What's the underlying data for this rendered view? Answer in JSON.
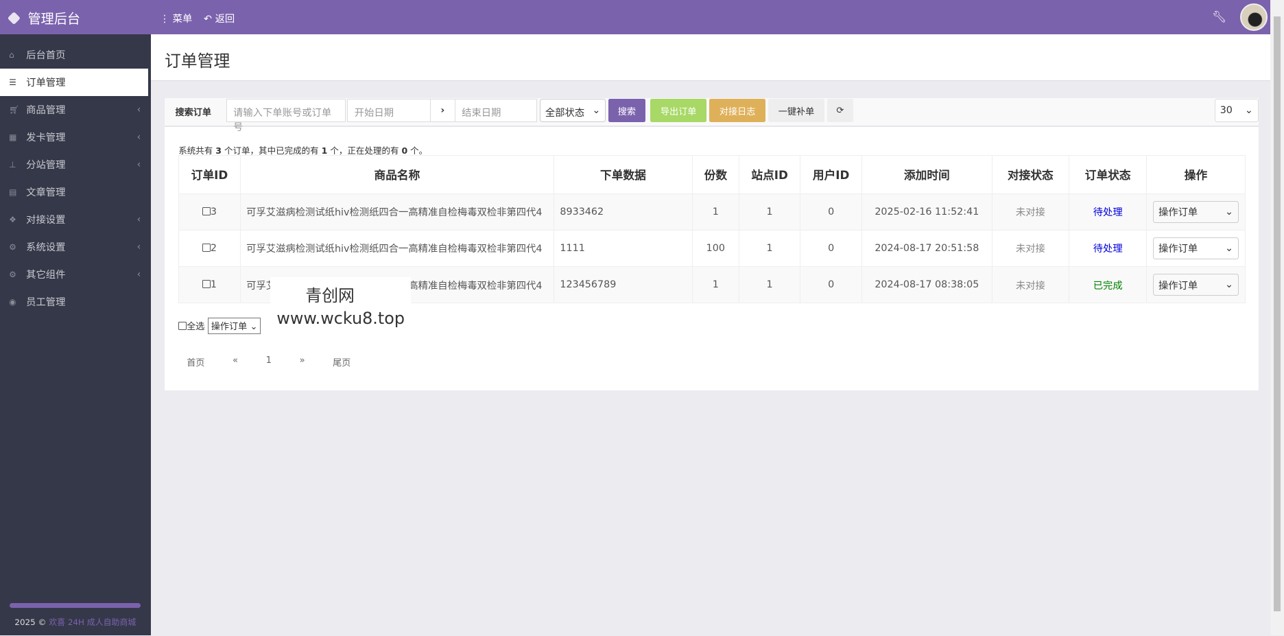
{
  "app": {
    "title": "管理后台",
    "menu_label": "菜单",
    "back_label": "返回"
  },
  "sidebar": {
    "items": [
      {
        "label": "后台首页",
        "icon": "home-icon",
        "active": false,
        "expandable": false
      },
      {
        "label": "订单管理",
        "icon": "list-icon",
        "active": true,
        "expandable": false
      },
      {
        "label": "商品管理",
        "icon": "cart-icon",
        "active": false,
        "expandable": true
      },
      {
        "label": "发卡管理",
        "icon": "grid-icon",
        "active": false,
        "expandable": true
      },
      {
        "label": "分站管理",
        "icon": "sitemap-icon",
        "active": false,
        "expandable": true
      },
      {
        "label": "文章管理",
        "icon": "book-icon",
        "active": false,
        "expandable": false
      },
      {
        "label": "对接设置",
        "icon": "cubes-icon",
        "active": false,
        "expandable": true
      },
      {
        "label": "系统设置",
        "icon": "gear-icon",
        "active": false,
        "expandable": true
      },
      {
        "label": "其它组件",
        "icon": "gears-icon",
        "active": false,
        "expandable": true
      },
      {
        "label": "员工管理",
        "icon": "user-circle-icon",
        "active": false,
        "expandable": false
      }
    ],
    "footer_year": "2025 ©",
    "footer_link": "欢喜 24H 成人自助商城"
  },
  "page": {
    "title": "订单管理"
  },
  "search": {
    "label": "搜索订单",
    "keyword_placeholder": "请输入下单账号或订单号",
    "start_placeholder": "开始日期",
    "end_placeholder": "结束日期",
    "status": "全部状态",
    "search": "搜索",
    "export": "导出订单",
    "log": "对接日志",
    "resupply": "一键补单",
    "page_size": "30"
  },
  "colors": {
    "brand": "#7b62ad",
    "export": "#a8d866",
    "log": "#dfb05a"
  },
  "summary": {
    "prefix": "系统共有 ",
    "total": "3",
    "mid1": " 个订单，其中已完成的有 ",
    "done": "1",
    "mid2": " 个，正在处理的有 ",
    "processing": "0",
    "suffix": " 个。"
  },
  "table": {
    "headers": [
      "订单ID",
      "商品名称",
      "下单数据",
      "份数",
      "站点ID",
      "用户ID",
      "添加时间",
      "对接状态",
      "订单状态",
      "操作"
    ],
    "rows": [
      {
        "id": "3",
        "name": "可孚艾滋病检测试纸hiv检测纸四合一高精准自检梅毒双检非第四代4",
        "data": "8933462",
        "qty": "1",
        "site": "1",
        "user": "0",
        "time": "2025-02-16 11:52:41",
        "dock": "未对接",
        "status": "待处理",
        "status_color": "#0000dd",
        "op": "操作订单"
      },
      {
        "id": "2",
        "name": "可孚艾滋病检测试纸hiv检测纸四合一高精准自检梅毒双检非第四代4",
        "data": "1111",
        "qty": "100",
        "site": "1",
        "user": "0",
        "time": "2024-08-17 20:51:58",
        "dock": "未对接",
        "status": "待处理",
        "status_color": "#0000dd",
        "op": "操作订单"
      },
      {
        "id": "1",
        "name": "可孚艾滋病检测试纸hiv检测纸四合一高精准自检梅毒双检非第四代4",
        "data": "123456789",
        "qty": "1",
        "site": "1",
        "user": "0",
        "time": "2024-08-17 08:38:05",
        "dock": "未对接",
        "status": "已完成",
        "status_color": "#008000",
        "op": "操作订单"
      }
    ]
  },
  "bulk": {
    "select_all": "全选",
    "action": "操作订单"
  },
  "pager": {
    "first": "首页",
    "prev": "«",
    "current": "1",
    "next": "»",
    "last": "尾页"
  },
  "watermark": {
    "line1": "青创网",
    "line2": "www.wcku8.top"
  }
}
